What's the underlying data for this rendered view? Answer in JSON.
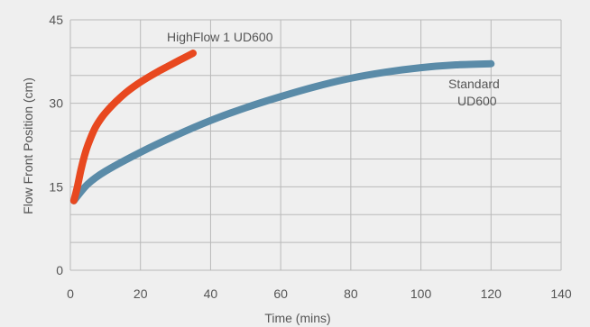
{
  "chart_data": {
    "type": "line",
    "xlabel": "Time (mins)",
    "ylabel": "Flow Front Position (cm)",
    "xlim": [
      0,
      140
    ],
    "ylim": [
      0,
      45
    ],
    "x_ticks": [
      "0",
      "20",
      "40",
      "60",
      "80",
      "100",
      "120",
      "140"
    ],
    "y_ticks": [
      "0",
      "15",
      "30",
      "45"
    ],
    "grid": true,
    "series": [
      {
        "name": "HighFlow 1 UD600",
        "color": "#e8481f",
        "x": [
          1,
          2,
          3,
          4,
          5,
          7,
          9,
          11,
          13,
          16,
          19,
          22,
          25,
          28,
          31,
          35
        ],
        "y": [
          12.5,
          15.0,
          18.0,
          20.5,
          22.5,
          25.5,
          27.5,
          29.0,
          30.3,
          32.0,
          33.4,
          34.6,
          35.7,
          36.7,
          37.7,
          39.0
        ]
      },
      {
        "name": "Standard UD600",
        "color": "#5a8ba8",
        "x": [
          1,
          5,
          10,
          20,
          30,
          40,
          50,
          60,
          70,
          80,
          90,
          100,
          110,
          120
        ],
        "y": [
          12.5,
          15.5,
          17.8,
          21.2,
          24.2,
          26.9,
          29.2,
          31.2,
          33.0,
          34.5,
          35.6,
          36.4,
          36.9,
          37.1
        ]
      }
    ],
    "labels": {
      "highflow": "HighFlow 1 UD600",
      "standard_line1": "Standard",
      "standard_line2": "UD600"
    }
  }
}
